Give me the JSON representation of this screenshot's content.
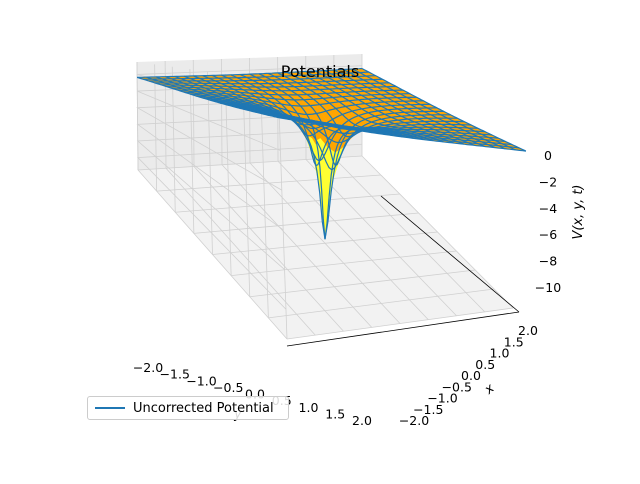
{
  "chart_data": {
    "type": "surface3d",
    "title": "Potentials",
    "xlabel": "x",
    "ylabel": "y",
    "zlabel": "V(x, y, t)",
    "x_ticks": [
      "−2.0",
      "−1.5",
      "−1.0",
      "−0.5",
      "0.0",
      "0.5",
      "1.0",
      "1.5",
      "2.0"
    ],
    "y_ticks": [
      "−2.0",
      "−1.5",
      "−1.0",
      "−0.5",
      "0.0",
      "0.5",
      "1.0",
      "1.5",
      "2.0"
    ],
    "z_ticks": [
      "0",
      "−2",
      "−4",
      "−6",
      "−8",
      "−10"
    ],
    "xlim": [
      -2.0,
      2.0
    ],
    "ylim": [
      -2.0,
      2.0
    ],
    "zlim": [
      -11.5,
      1.5
    ],
    "grid": true,
    "legend_position": "lower-left",
    "series": [
      {
        "name": "Uncorrected Potential",
        "kind": "wireframe",
        "color": "#1f77b4"
      },
      {
        "kind": "surface",
        "color": "#ffa500",
        "deep_color": "#ffff33"
      }
    ],
    "function": "V = -1/sqrt(x^2 + y^2 + 0.008)"
  }
}
